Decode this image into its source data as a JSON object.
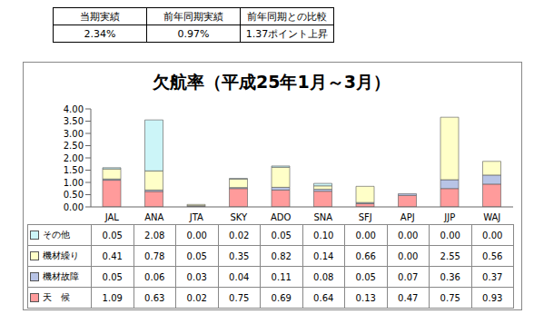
{
  "summary_table": {
    "headers": [
      "当期実績",
      "前年同期実績",
      "前年同期との比較"
    ],
    "rows": [
      [
        "2.34%",
        "0.97%",
        "1.37ポイント上昇"
      ]
    ]
  },
  "chart_data": {
    "type": "bar",
    "title": "欠航率（平成25年1月～3月）",
    "categories": [
      "JAL",
      "ANA",
      "JTA",
      "SKY",
      "ADO",
      "SNA",
      "SFJ",
      "APJ",
      "JJP",
      "WAJ"
    ],
    "stacked": true,
    "grid": false,
    "ylim": [
      0,
      4
    ],
    "yticks": [
      {
        "value": 0,
        "label": "0.00"
      },
      {
        "value": 0.5,
        "label": "0.50"
      },
      {
        "value": 1,
        "label": "1.00"
      },
      {
        "value": 1.5,
        "label": "1.50"
      },
      {
        "value": 2,
        "label": "2.00"
      },
      {
        "value": 2.5,
        "label": "2.50"
      },
      {
        "value": 3,
        "label": "3.00"
      },
      {
        "value": 3.5,
        "label": "3.50"
      },
      {
        "value": 4,
        "label": "4.00"
      }
    ],
    "series": [
      {
        "name": "天　候",
        "color": "#ff9b9b",
        "values": [
          1.09,
          0.63,
          0.02,
          0.75,
          0.69,
          0.64,
          0.13,
          0.47,
          0.75,
          0.93
        ],
        "value_labels": [
          "1.09",
          "0.63",
          "0.02",
          "0.75",
          "0.69",
          "0.64",
          "0.13",
          "0.47",
          "0.75",
          "0.93"
        ]
      },
      {
        "name": "機材故障",
        "color": "#b8c4e6",
        "values": [
          0.05,
          0.06,
          0.03,
          0.04,
          0.11,
          0.08,
          0.05,
          0.07,
          0.36,
          0.37
        ],
        "value_labels": [
          "0.05",
          "0.06",
          "0.03",
          "0.04",
          "0.11",
          "0.08",
          "0.05",
          "0.07",
          "0.36",
          "0.37"
        ]
      },
      {
        "name": "機材繰り",
        "color": "#ffffc8",
        "values": [
          0.41,
          0.78,
          0.05,
          0.35,
          0.82,
          0.14,
          0.66,
          0.0,
          2.55,
          0.56
        ],
        "value_labels": [
          "0.41",
          "0.78",
          "0.05",
          "0.35",
          "0.82",
          "0.14",
          "0.66",
          "0.00",
          "2.55",
          "0.56"
        ]
      },
      {
        "name": "その他",
        "color": "#ccf5f8",
        "values": [
          0.05,
          2.08,
          0.0,
          0.02,
          0.05,
          0.1,
          0.0,
          0.0,
          0.0,
          0.0
        ],
        "value_labels": [
          "0.05",
          "2.08",
          "0.00",
          "0.02",
          "0.05",
          "0.10",
          "0.00",
          "0.00",
          "0.00",
          "0.00"
        ]
      }
    ]
  }
}
